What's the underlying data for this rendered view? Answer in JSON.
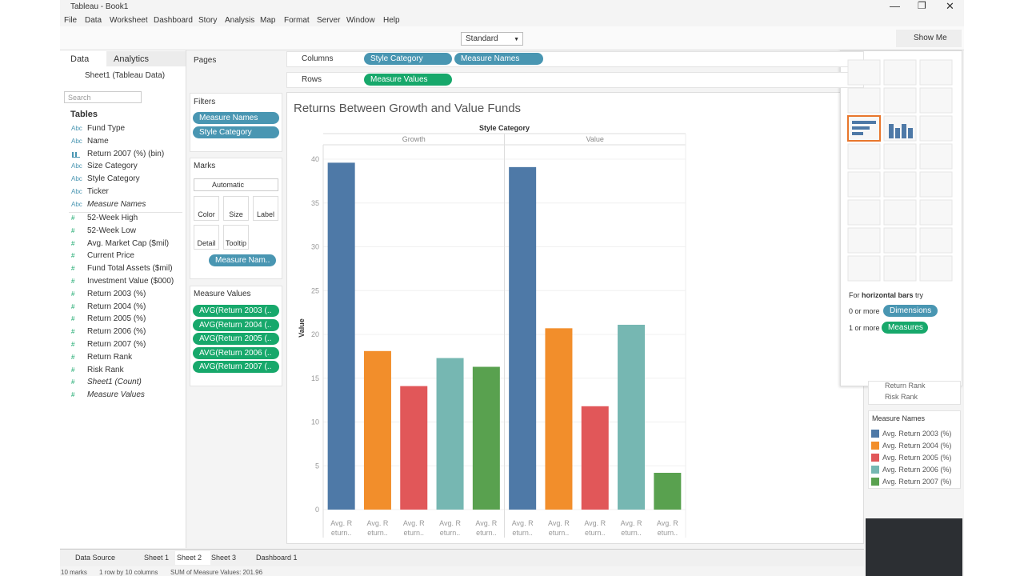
{
  "window_title": "Tableau - Book1",
  "menu": [
    "File",
    "Data",
    "Worksheet",
    "Dashboard",
    "Story",
    "Analysis",
    "Map",
    "Format",
    "Server",
    "Window",
    "Help"
  ],
  "toolbar": {
    "fit": "Standard",
    "show_me": "Show Me"
  },
  "data_pane": {
    "tabs": [
      "Data",
      "Analytics"
    ],
    "source": "Sheet1 (Tableau Data)",
    "search": "Search",
    "tables_heading": "Tables",
    "dimensions": [
      {
        "kind": "Abc",
        "name": "Fund Type",
        "italic": false
      },
      {
        "kind": "Abc",
        "name": "Name",
        "italic": false
      },
      {
        "kind": "bin",
        "name": "Return 2007 (%) (bin)",
        "italic": false
      },
      {
        "kind": "Abc",
        "name": "Size Category",
        "italic": false
      },
      {
        "kind": "Abc",
        "name": "Style Category",
        "italic": false
      },
      {
        "kind": "Abc",
        "name": "Ticker",
        "italic": false
      },
      {
        "kind": "Abc",
        "name": "Measure Names",
        "italic": true
      }
    ],
    "measures": [
      {
        "kind": "#",
        "name": "52-Week High",
        "italic": false
      },
      {
        "kind": "#",
        "name": "52-Week Low",
        "italic": false
      },
      {
        "kind": "#",
        "name": "Avg. Market Cap ($mil)",
        "italic": false
      },
      {
        "kind": "#",
        "name": "Current Price",
        "italic": false
      },
      {
        "kind": "#",
        "name": "Fund Total Assets ($mil)",
        "italic": false
      },
      {
        "kind": "#",
        "name": "Investment Value ($000)",
        "italic": false
      },
      {
        "kind": "#",
        "name": "Return 2003 (%)",
        "italic": false
      },
      {
        "kind": "#",
        "name": "Return 2004 (%)",
        "italic": false
      },
      {
        "kind": "#",
        "name": "Return 2005 (%)",
        "italic": false
      },
      {
        "kind": "#",
        "name": "Return 2006 (%)",
        "italic": false
      },
      {
        "kind": "#",
        "name": "Return 2007 (%)",
        "italic": false
      },
      {
        "kind": "#",
        "name": "Return Rank",
        "italic": false
      },
      {
        "kind": "#",
        "name": "Risk Rank",
        "italic": false
      },
      {
        "kind": "#",
        "name": "Sheet1 (Count)",
        "italic": true
      },
      {
        "kind": "#",
        "name": "Measure Values",
        "italic": true
      }
    ]
  },
  "pages": "Pages",
  "filters": {
    "title": "Filters",
    "pills": [
      "Measure Names",
      "Style Category"
    ]
  },
  "marks": {
    "title": "Marks",
    "type": "Automatic",
    "buttons": [
      "Color",
      "Size",
      "Label",
      "Detail",
      "Tooltip"
    ],
    "pill": "Measure Nam.."
  },
  "measure_values": {
    "title": "Measure Values",
    "pills": [
      "AVG(Return 2003 (..",
      "AVG(Return 2004 (..",
      "AVG(Return 2005 (..",
      "AVG(Return 2006 (..",
      "AVG(Return 2007 (.."
    ]
  },
  "shelves": {
    "columns_label": "Columns",
    "columns": [
      "Style Category",
      "Measure Names"
    ],
    "rows_label": "Rows",
    "rows": [
      "Measure Values"
    ]
  },
  "chart_data": {
    "type": "bar",
    "title": "Returns Between Growth and Value Funds",
    "column_header": "Style Category",
    "categories": [
      "Growth",
      "Value"
    ],
    "x_tick_label": [
      "Avg. R",
      "eturn.."
    ],
    "ylabel": "Value",
    "ylim": [
      0,
      40
    ],
    "yticks": [
      0,
      5,
      10,
      15,
      20,
      25,
      30,
      35,
      40
    ],
    "grid": true,
    "series": [
      {
        "name": "Avg. Return 2003 (%)",
        "color": "#4e79a7",
        "values": [
          39.6,
          39.1
        ]
      },
      {
        "name": "Avg. Return 2004 (%)",
        "color": "#f28e2b",
        "values": [
          18.1,
          20.7
        ]
      },
      {
        "name": "Avg. Return 2005 (%)",
        "color": "#e15759",
        "values": [
          14.1,
          11.8
        ]
      },
      {
        "name": "Avg. Return 2006 (%)",
        "color": "#76b7b2",
        "values": [
          17.3,
          21.1
        ]
      },
      {
        "name": "Avg. Return 2007 (%)",
        "color": "#59a14f",
        "values": [
          16.3,
          4.2
        ]
      }
    ],
    "legend_title": "Measure Names"
  },
  "show_me": {
    "prefix": "For",
    "chart": "horizontal bars",
    "suffix": "try",
    "dim_count": "0 or more",
    "dim_pill": "Dimensions",
    "mea_count": "1 or more",
    "mea_pill": "Measures"
  },
  "filter_card": [
    "Return Rank",
    "Risk Rank"
  ],
  "sheet_tabs": [
    "Data Source",
    "Sheet 1",
    "Sheet 2",
    "Sheet 3",
    "Dashboard 1"
  ],
  "status": [
    "10 marks",
    "1 row by 10 columns",
    "SUM of Measure Values: 201.96"
  ]
}
